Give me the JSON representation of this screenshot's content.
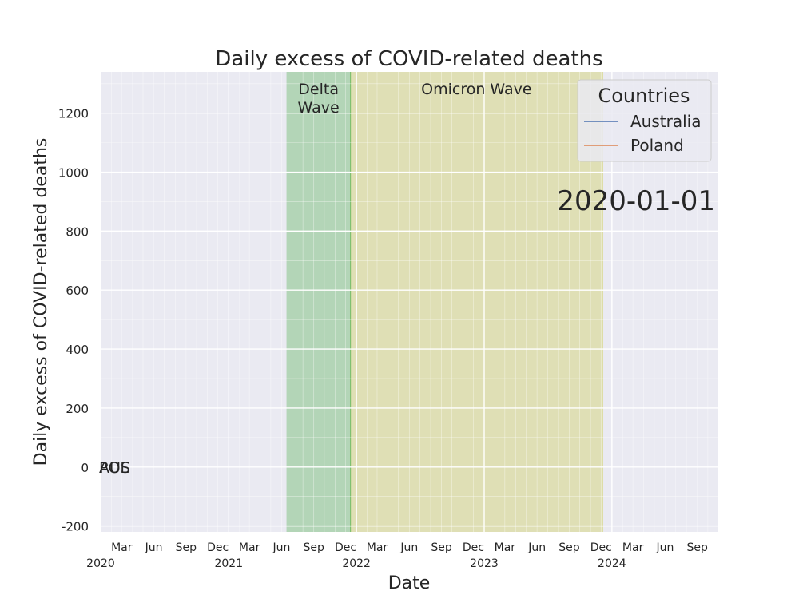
{
  "chart_data": {
    "type": "line",
    "title": "Daily excess of COVID-related deaths",
    "xlabel": "Date",
    "ylabel": "Daily excess of COVID-related deaths",
    "xlim": [
      "2020-01-01",
      "2024-10-31"
    ],
    "ylim": [
      -220,
      1340
    ],
    "y_ticks": [
      -200,
      0,
      200,
      400,
      600,
      800,
      1000,
      1200
    ],
    "x_ticks": [
      {
        "date": "2020-03-01",
        "label": "Mar"
      },
      {
        "date": "2020-06-01",
        "label": "Jun"
      },
      {
        "date": "2020-09-01",
        "label": "Sep"
      },
      {
        "date": "2020-12-01",
        "label": "Dec"
      },
      {
        "date": "2021-03-01",
        "label": "Mar"
      },
      {
        "date": "2021-06-01",
        "label": "Jun"
      },
      {
        "date": "2021-09-01",
        "label": "Sep"
      },
      {
        "date": "2021-12-01",
        "label": "Dec"
      },
      {
        "date": "2022-03-01",
        "label": "Mar"
      },
      {
        "date": "2022-06-01",
        "label": "Jun"
      },
      {
        "date": "2022-09-01",
        "label": "Sep"
      },
      {
        "date": "2022-12-01",
        "label": "Dec"
      },
      {
        "date": "2023-03-01",
        "label": "Mar"
      },
      {
        "date": "2023-06-01",
        "label": "Jun"
      },
      {
        "date": "2023-09-01",
        "label": "Sep"
      },
      {
        "date": "2023-12-01",
        "label": "Dec"
      },
      {
        "date": "2024-03-01",
        "label": "Mar"
      },
      {
        "date": "2024-06-01",
        "label": "Jun"
      },
      {
        "date": "2024-09-01",
        "label": "Sep"
      }
    ],
    "year_ticks": [
      {
        "date": "2020-01-01",
        "label": "2020"
      },
      {
        "date": "2021-01-01",
        "label": "2021"
      },
      {
        "date": "2022-01-01",
        "label": "2022"
      },
      {
        "date": "2023-01-01",
        "label": "2023"
      },
      {
        "date": "2024-01-01",
        "label": "2024"
      }
    ],
    "bands": [
      {
        "label_lines": [
          "Delta",
          "Wave"
        ],
        "start": "2021-06-15",
        "end": "2021-12-15",
        "color": "#4daf4a",
        "opacity": 0.35
      },
      {
        "label_lines": [
          "Omicron Wave"
        ],
        "start": "2021-12-15",
        "end": "2023-12-05",
        "color": "#cccc44",
        "opacity": 0.35
      }
    ],
    "series": [
      {
        "name": "Australia",
        "color": "#4c72b0",
        "end_label": "AUS",
        "points": [
          [
            "2020-01-01",
            0
          ]
        ]
      },
      {
        "name": "Poland",
        "color": "#dd8452",
        "end_label": "POL",
        "points": [
          [
            "2020-01-01",
            0
          ]
        ]
      }
    ],
    "legend": {
      "title": "Countries",
      "placement": "top-right"
    },
    "current_date_label": "2020-01-01",
    "grid": true,
    "background_color": "#eaeaf2"
  }
}
